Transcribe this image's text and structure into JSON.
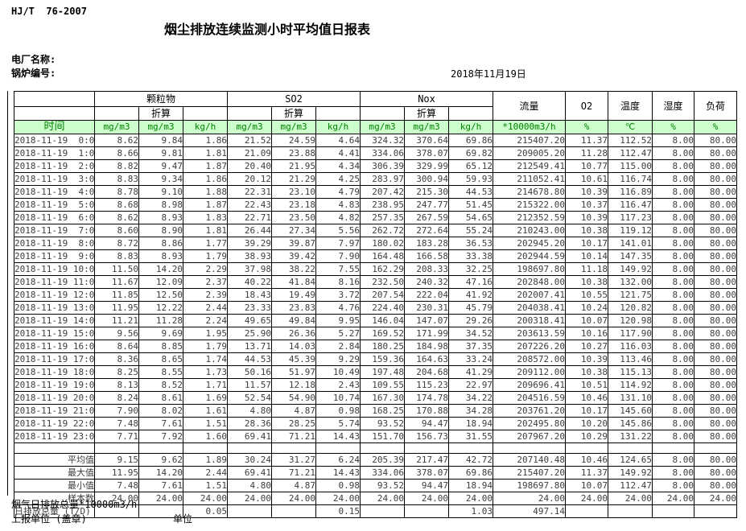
{
  "doc": {
    "standard_no": "HJ/T  76-2007",
    "title": "烟尘排放连续监测小时平均值日报表",
    "plant_name_label": "电厂名称:",
    "boiler_no_label": "锅炉编号:",
    "report_date": "2018年11月19日"
  },
  "table": {
    "time_header": "时间",
    "groups": [
      {
        "label": "颗粒物",
        "sub": "折算"
      },
      {
        "label": "SO2",
        "sub": "折算"
      },
      {
        "label": "Nox",
        "sub": "折算"
      }
    ],
    "single_headers": {
      "flow": "流量",
      "o2": "O2",
      "temp": "温度",
      "humidity": "湿度",
      "load": "负荷"
    },
    "units": [
      "mg/m3",
      "mg/m3",
      "kg/h",
      "mg/m3",
      "mg/m3",
      "kg/h",
      "mg/m3",
      "mg/m3",
      "kg/h",
      "*10000m3/h",
      "%",
      "℃",
      "%",
      "%"
    ],
    "rows": [
      {
        "time": "2018-11-19  0:00",
        "v": [
          "8.62",
          "9.84",
          "1.86",
          "21.52",
          "24.59",
          "4.64",
          "324.32",
          "370.64",
          "69.86",
          "215407.20",
          "11.37",
          "112.52",
          "8.00",
          "80.00"
        ]
      },
      {
        "time": "2018-11-19  1:00",
        "v": [
          "8.66",
          "9.81",
          "1.81",
          "21.09",
          "23.88",
          "4.41",
          "334.06",
          "378.07",
          "69.82",
          "209005.20",
          "11.28",
          "112.47",
          "8.00",
          "80.00"
        ]
      },
      {
        "time": "2018-11-19  2:00",
        "v": [
          "8.82",
          "9.47",
          "1.87",
          "20.40",
          "21.95",
          "4.34",
          "306.39",
          "329.99",
          "65.12",
          "212549.41",
          "10.77",
          "115.00",
          "8.00",
          "80.00"
        ]
      },
      {
        "time": "2018-11-19  3:00",
        "v": [
          "8.83",
          "9.34",
          "1.86",
          "20.12",
          "21.29",
          "4.25",
          "283.97",
          "300.94",
          "59.93",
          "211052.41",
          "10.61",
          "116.74",
          "8.00",
          "80.00"
        ]
      },
      {
        "time": "2018-11-19  4:00",
        "v": [
          "8.78",
          "9.10",
          "1.88",
          "22.31",
          "23.10",
          "4.79",
          "207.42",
          "215.30",
          "44.53",
          "214678.80",
          "10.39",
          "116.89",
          "8.00",
          "80.00"
        ]
      },
      {
        "time": "2018-11-19  5:00",
        "v": [
          "8.68",
          "8.98",
          "1.87",
          "22.43",
          "23.18",
          "4.83",
          "238.95",
          "247.77",
          "51.45",
          "215322.00",
          "10.37",
          "116.47",
          "8.00",
          "80.00"
        ]
      },
      {
        "time": "2018-11-19  6:00",
        "v": [
          "8.62",
          "8.93",
          "1.83",
          "22.71",
          "23.50",
          "4.82",
          "257.35",
          "267.59",
          "54.65",
          "212352.59",
          "10.39",
          "117.23",
          "8.00",
          "80.00"
        ]
      },
      {
        "time": "2018-11-19  7:00",
        "v": [
          "8.60",
          "8.90",
          "1.81",
          "26.44",
          "27.34",
          "5.56",
          "262.72",
          "272.64",
          "55.24",
          "210243.00",
          "10.38",
          "119.12",
          "8.00",
          "80.00"
        ]
      },
      {
        "time": "2018-11-19  8:00",
        "v": [
          "8.72",
          "8.86",
          "1.77",
          "39.29",
          "39.87",
          "7.97",
          "180.02",
          "183.28",
          "36.53",
          "202945.20",
          "10.17",
          "141.01",
          "8.00",
          "80.00"
        ]
      },
      {
        "time": "2018-11-19  9:00",
        "v": [
          "8.83",
          "8.93",
          "1.79",
          "38.93",
          "39.42",
          "7.90",
          "164.48",
          "166.58",
          "33.38",
          "202944.59",
          "10.14",
          "147.35",
          "8.00",
          "80.00"
        ]
      },
      {
        "time": "2018-11-19 10:00",
        "v": [
          "11.50",
          "14.20",
          "2.29",
          "37.98",
          "38.22",
          "7.55",
          "162.29",
          "208.33",
          "32.25",
          "198697.80",
          "11.18",
          "149.92",
          "8.00",
          "80.00"
        ]
      },
      {
        "time": "2018-11-19 11:00",
        "v": [
          "11.67",
          "12.09",
          "2.37",
          "40.22",
          "41.84",
          "8.16",
          "232.50",
          "240.32",
          "47.16",
          "202848.00",
          "10.38",
          "132.00",
          "8.00",
          "80.00"
        ]
      },
      {
        "time": "2018-11-19 12:00",
        "v": [
          "11.85",
          "12.50",
          "2.39",
          "18.43",
          "19.49",
          "3.72",
          "207.54",
          "222.04",
          "41.92",
          "202007.41",
          "10.55",
          "121.75",
          "8.00",
          "80.00"
        ]
      },
      {
        "time": "2018-11-19 13:00",
        "v": [
          "11.95",
          "12.22",
          "2.44",
          "23.33",
          "23.83",
          "4.76",
          "224.40",
          "230.31",
          "45.79",
          "204038.41",
          "10.24",
          "120.82",
          "8.00",
          "80.00"
        ]
      },
      {
        "time": "2018-11-19 14:00",
        "v": [
          "11.21",
          "11.28",
          "2.24",
          "49.65",
          "49.84",
          "9.95",
          "146.04",
          "147.07",
          "29.26",
          "200318.41",
          "10.07",
          "120.98",
          "8.00",
          "80.00"
        ]
      },
      {
        "time": "2018-11-19 15:00",
        "v": [
          "9.56",
          "9.69",
          "1.95",
          "25.90",
          "26.36",
          "5.27",
          "169.52",
          "171.99",
          "34.52",
          "203613.59",
          "10.16",
          "117.90",
          "8.00",
          "80.00"
        ]
      },
      {
        "time": "2018-11-19 16:00",
        "v": [
          "8.64",
          "8.85",
          "1.79",
          "13.71",
          "14.03",
          "2.84",
          "180.25",
          "184.98",
          "37.35",
          "207226.20",
          "10.27",
          "116.03",
          "8.00",
          "80.00"
        ]
      },
      {
        "time": "2018-11-19 17:00",
        "v": [
          "8.36",
          "8.65",
          "1.74",
          "44.53",
          "45.39",
          "9.29",
          "159.36",
          "164.63",
          "33.24",
          "208572.00",
          "10.39",
          "113.46",
          "8.00",
          "80.00"
        ]
      },
      {
        "time": "2018-11-19 18:00",
        "v": [
          "8.25",
          "8.55",
          "1.73",
          "50.16",
          "51.97",
          "10.49",
          "197.48",
          "204.68",
          "41.29",
          "209112.00",
          "10.38",
          "115.13",
          "8.00",
          "80.00"
        ]
      },
      {
        "time": "2018-11-19 19:00",
        "v": [
          "8.13",
          "8.52",
          "1.71",
          "11.57",
          "12.18",
          "2.43",
          "109.55",
          "115.23",
          "22.97",
          "209696.41",
          "10.51",
          "114.92",
          "8.00",
          "80.00"
        ]
      },
      {
        "time": "2018-11-19 20:00",
        "v": [
          "8.24",
          "8.61",
          "1.69",
          "52.54",
          "54.90",
          "10.74",
          "167.30",
          "174.78",
          "34.22",
          "204516.59",
          "10.46",
          "131.10",
          "8.00",
          "80.00"
        ]
      },
      {
        "time": "2018-11-19 21:00",
        "v": [
          "7.90",
          "8.02",
          "1.61",
          "4.80",
          "4.87",
          "0.98",
          "168.25",
          "170.88",
          "34.28",
          "203761.20",
          "10.17",
          "145.60",
          "8.00",
          "80.00"
        ]
      },
      {
        "time": "2018-11-19 22:00",
        "v": [
          "7.48",
          "7.61",
          "1.51",
          "28.36",
          "28.25",
          "5.74",
          "93.52",
          "94.47",
          "18.94",
          "202495.80",
          "10.20",
          "145.86",
          "8.00",
          "80.00"
        ]
      },
      {
        "time": "2018-11-19 23:00",
        "v": [
          "7.71",
          "7.92",
          "1.60",
          "69.41",
          "71.21",
          "14.43",
          "151.70",
          "156.73",
          "31.55",
          "207967.20",
          "10.29",
          "131.22",
          "8.00",
          "80.00"
        ]
      }
    ],
    "summary": [
      {
        "label": "平均值",
        "v": [
          "9.15",
          "9.62",
          "1.89",
          "30.24",
          "31.27",
          "6.24",
          "205.39",
          "217.47",
          "42.72",
          "207140.48",
          "10.46",
          "124.65",
          "8.00",
          "80.00"
        ]
      },
      {
        "label": "最大值",
        "v": [
          "11.95",
          "14.20",
          "2.44",
          "69.41",
          "71.21",
          "14.43",
          "334.06",
          "378.07",
          "69.86",
          "215407.20",
          "11.37",
          "149.92",
          "8.00",
          "80.00"
        ]
      },
      {
        "label": "最小值",
        "v": [
          "7.48",
          "7.61",
          "1.51",
          "4.80",
          "4.87",
          "0.98",
          "93.52",
          "94.47",
          "18.94",
          "198697.80",
          "10.07",
          "112.47",
          "8.00",
          "80.00"
        ]
      },
      {
        "label": "样本数",
        "v": [
          "24.00",
          "24.00",
          "24.00",
          "24.00",
          "24.00",
          "24.00",
          "24.00",
          "24.00",
          "24.00",
          "24.00",
          "24.00",
          "24.00",
          "24.00",
          "24.00"
        ]
      }
    ],
    "total": {
      "label": "日排放总量 (T/D)",
      "v": [
        "",
        "",
        "0.05",
        "",
        "",
        "0.15",
        "",
        "",
        "1.03",
        "497.14",
        "",
        "",
        "",
        ""
      ]
    }
  },
  "footer": {
    "flue_total_label": "烟气日排放总量*10000m3/h",
    "report_org_label": "上报单位 (盖章)",
    "unit_label": "单位"
  },
  "colors": {
    "header_bg": "#ccffcc",
    "header_text": "#008000",
    "data_text": "#3d3d3d"
  }
}
